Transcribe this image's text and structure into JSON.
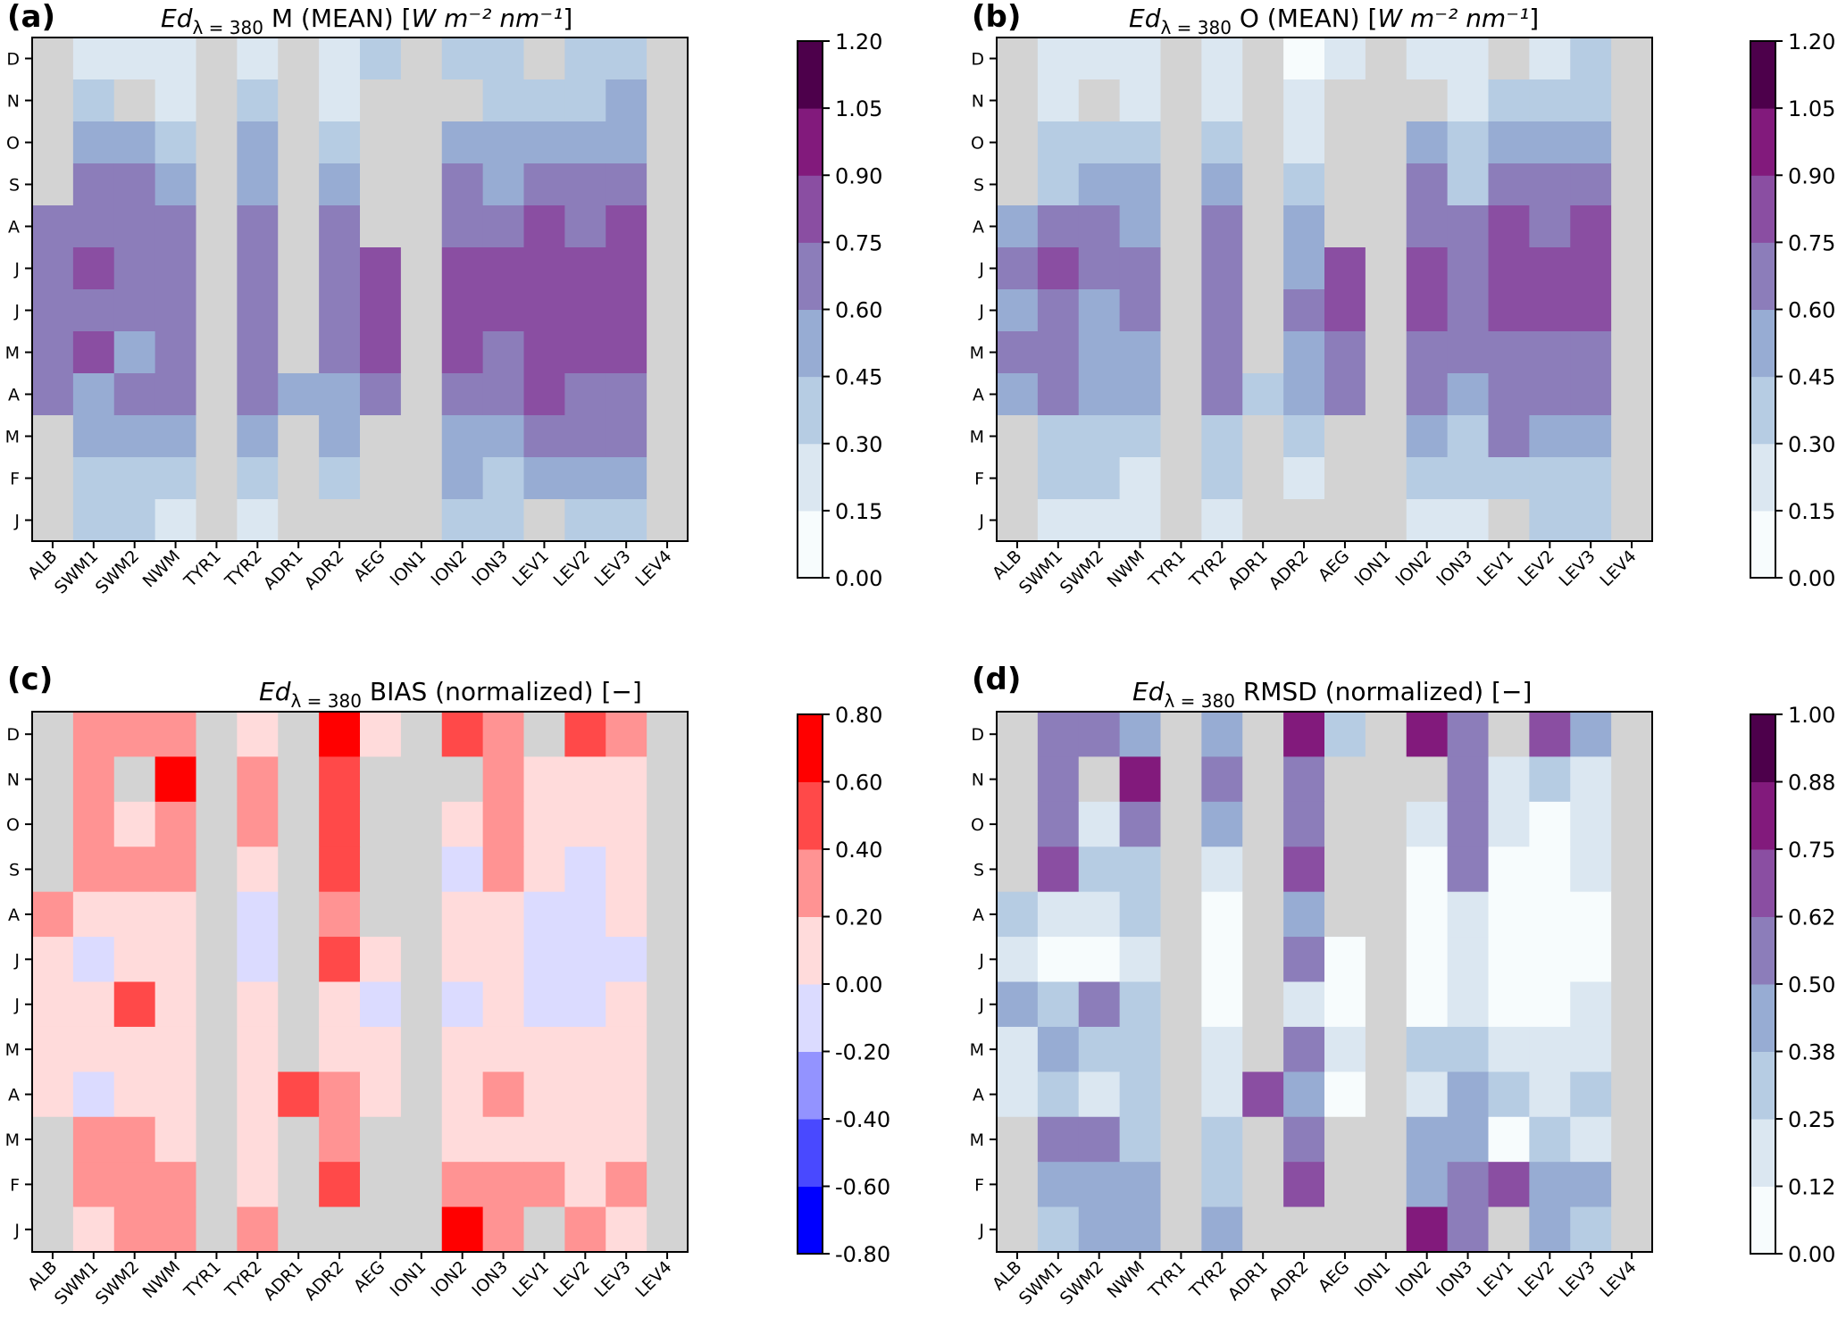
{
  "chart_data": {
    "type": "heatmap",
    "rows": [
      "D",
      "N",
      "O",
      "S",
      "A",
      "J",
      "J",
      "M",
      "A",
      "M",
      "F",
      "J"
    ],
    "columns": [
      "ALB",
      "SWM1",
      "SWM2",
      "NWM",
      "TYR1",
      "TYR2",
      "ADR1",
      "ADR2",
      "AEG",
      "ION1",
      "ION2",
      "ION3",
      "LEV1",
      "LEV2",
      "LEV3",
      "LEV4"
    ],
    "missing_color": "#d3d3d3",
    "value_encoding": "each cell = index of colorbar bin (0 = lowest bin); null = no data",
    "colorbars": {
      "mean": {
        "ticks": [
          "0.00",
          "0.15",
          "0.30",
          "0.45",
          "0.60",
          "0.75",
          "0.90",
          "1.05",
          "1.20"
        ],
        "range": [
          0.0,
          1.2
        ],
        "colors": [
          "#f7fcfd",
          "#dbe7f1",
          "#b6cce3",
          "#97acd3",
          "#8c7dba",
          "#8a4ea2",
          "#821a7c",
          "#4d004b"
        ]
      },
      "bias": {
        "ticks": [
          "-0.80",
          "-0.60",
          "-0.40",
          "-0.20",
          "0.00",
          "0.20",
          "0.40",
          "0.60",
          "0.80"
        ],
        "range": [
          -0.8,
          0.8
        ],
        "colors": [
          "#0000ff",
          "#4949ff",
          "#9393ff",
          "#dbdbff",
          "#ffdbdb",
          "#ff9393",
          "#ff4949",
          "#ff0000"
        ]
      },
      "rmsd": {
        "ticks": [
          "0.00",
          "0.12",
          "0.25",
          "0.38",
          "0.50",
          "0.62",
          "0.75",
          "0.88",
          "1.00"
        ],
        "range": [
          0.0,
          1.0
        ],
        "colors": [
          "#f7fcfd",
          "#dbe7f1",
          "#b6cce3",
          "#97acd3",
          "#8c7dba",
          "#8a4ea2",
          "#821a7c",
          "#4d004b"
        ]
      }
    },
    "panels": [
      {
        "letter": "(a)",
        "title_var": "Ed",
        "title_sub": "λ = 380",
        "title_rest": " M (MEAN) [",
        "title_unit": "W m⁻² nm⁻¹",
        "title_end": "]",
        "colorbar": "mean",
        "grid": [
          [
            null,
            1,
            1,
            1,
            null,
            1,
            null,
            1,
            2,
            null,
            2,
            2,
            null,
            2,
            2,
            null
          ],
          [
            null,
            2,
            null,
            1,
            null,
            2,
            null,
            1,
            null,
            null,
            null,
            2,
            2,
            2,
            3,
            null
          ],
          [
            null,
            3,
            3,
            2,
            null,
            3,
            null,
            2,
            null,
            null,
            3,
            3,
            3,
            3,
            3,
            null
          ],
          [
            null,
            4,
            4,
            3,
            null,
            3,
            null,
            3,
            null,
            null,
            4,
            3,
            4,
            4,
            4,
            null
          ],
          [
            4,
            4,
            4,
            4,
            null,
            4,
            null,
            4,
            null,
            null,
            4,
            4,
            5,
            4,
            5,
            null
          ],
          [
            4,
            5,
            4,
            4,
            null,
            4,
            null,
            4,
            5,
            null,
            5,
            5,
            5,
            5,
            5,
            null
          ],
          [
            4,
            4,
            4,
            4,
            null,
            4,
            null,
            4,
            5,
            null,
            5,
            5,
            5,
            5,
            5,
            null
          ],
          [
            4,
            5,
            3,
            4,
            null,
            4,
            null,
            4,
            5,
            null,
            5,
            4,
            5,
            5,
            5,
            null
          ],
          [
            4,
            3,
            4,
            4,
            null,
            4,
            3,
            3,
            4,
            null,
            4,
            4,
            5,
            4,
            4,
            null
          ],
          [
            null,
            3,
            3,
            3,
            null,
            3,
            null,
            3,
            null,
            null,
            3,
            3,
            4,
            4,
            4,
            null
          ],
          [
            null,
            2,
            2,
            2,
            null,
            2,
            null,
            2,
            null,
            null,
            3,
            2,
            3,
            3,
            3,
            null
          ],
          [
            null,
            2,
            2,
            1,
            null,
            1,
            null,
            null,
            null,
            null,
            2,
            2,
            null,
            2,
            2,
            null
          ]
        ]
      },
      {
        "letter": "(b)",
        "title_var": "Ed",
        "title_sub": "λ = 380",
        "title_rest": " O (MEAN) [",
        "title_unit": "W m⁻² nm⁻¹",
        "title_end": "]",
        "colorbar": "mean",
        "grid": [
          [
            null,
            1,
            1,
            1,
            null,
            1,
            null,
            0,
            1,
            null,
            1,
            1,
            null,
            1,
            2,
            null
          ],
          [
            null,
            1,
            null,
            1,
            null,
            1,
            null,
            1,
            null,
            null,
            null,
            1,
            2,
            2,
            2,
            null
          ],
          [
            null,
            2,
            2,
            2,
            null,
            2,
            null,
            1,
            null,
            null,
            3,
            2,
            3,
            3,
            3,
            null
          ],
          [
            null,
            2,
            3,
            3,
            null,
            3,
            null,
            2,
            null,
            null,
            4,
            2,
            4,
            4,
            4,
            null
          ],
          [
            3,
            4,
            4,
            3,
            null,
            4,
            null,
            3,
            null,
            null,
            4,
            4,
            5,
            4,
            5,
            null
          ],
          [
            4,
            5,
            4,
            4,
            null,
            4,
            null,
            3,
            5,
            null,
            5,
            4,
            5,
            5,
            5,
            null
          ],
          [
            3,
            4,
            3,
            4,
            null,
            4,
            null,
            4,
            5,
            null,
            5,
            4,
            5,
            5,
            5,
            null
          ],
          [
            4,
            4,
            3,
            3,
            null,
            4,
            null,
            3,
            4,
            null,
            4,
            4,
            4,
            4,
            4,
            null
          ],
          [
            3,
            4,
            3,
            3,
            null,
            4,
            2,
            3,
            4,
            null,
            4,
            3,
            4,
            4,
            4,
            null
          ],
          [
            null,
            2,
            2,
            2,
            null,
            2,
            null,
            2,
            null,
            null,
            3,
            2,
            4,
            3,
            3,
            null
          ],
          [
            null,
            2,
            2,
            1,
            null,
            2,
            null,
            1,
            null,
            null,
            2,
            2,
            2,
            2,
            2,
            null
          ],
          [
            null,
            1,
            1,
            1,
            null,
            1,
            null,
            null,
            null,
            null,
            1,
            1,
            null,
            2,
            2,
            null
          ]
        ]
      },
      {
        "letter": "(c)",
        "title_var": "Ed",
        "title_sub": "λ = 380",
        "title_rest": " BIAS (normalized) [",
        "title_unit": "−",
        "title_end": "]",
        "colorbar": "bias",
        "grid": [
          [
            null,
            5,
            5,
            5,
            null,
            4,
            null,
            7,
            4,
            null,
            6,
            5,
            null,
            6,
            5,
            null
          ],
          [
            null,
            5,
            null,
            7,
            null,
            5,
            null,
            6,
            null,
            null,
            null,
            5,
            4,
            4,
            4,
            null
          ],
          [
            null,
            5,
            4,
            5,
            null,
            5,
            null,
            6,
            null,
            null,
            4,
            5,
            4,
            4,
            4,
            null
          ],
          [
            null,
            5,
            5,
            5,
            null,
            4,
            null,
            6,
            null,
            null,
            3,
            5,
            4,
            3,
            4,
            null
          ],
          [
            5,
            4,
            4,
            4,
            null,
            3,
            null,
            5,
            null,
            null,
            4,
            4,
            3,
            3,
            4,
            null
          ],
          [
            4,
            3,
            4,
            4,
            null,
            3,
            null,
            6,
            4,
            null,
            4,
            4,
            3,
            3,
            3,
            null
          ],
          [
            4,
            4,
            6,
            4,
            null,
            4,
            null,
            4,
            3,
            null,
            3,
            4,
            3,
            3,
            4,
            null
          ],
          [
            4,
            4,
            4,
            4,
            null,
            4,
            null,
            4,
            4,
            null,
            4,
            4,
            4,
            4,
            4,
            null
          ],
          [
            4,
            3,
            4,
            4,
            null,
            4,
            6,
            5,
            4,
            null,
            4,
            5,
            4,
            4,
            4,
            null
          ],
          [
            null,
            5,
            5,
            4,
            null,
            4,
            null,
            5,
            null,
            null,
            4,
            4,
            4,
            4,
            4,
            null
          ],
          [
            null,
            5,
            5,
            5,
            null,
            4,
            null,
            6,
            null,
            null,
            5,
            5,
            5,
            4,
            5,
            null
          ],
          [
            null,
            4,
            5,
            5,
            null,
            5,
            null,
            null,
            null,
            null,
            7,
            5,
            null,
            5,
            4,
            null
          ]
        ]
      },
      {
        "letter": "(d)",
        "title_var": "Ed",
        "title_sub": "λ = 380",
        "title_rest": " RMSD (normalized) [",
        "title_unit": "−",
        "title_end": "]",
        "colorbar": "rmsd",
        "grid": [
          [
            null,
            4,
            4,
            3,
            null,
            3,
            null,
            6,
            2,
            null,
            6,
            4,
            null,
            5,
            3,
            null
          ],
          [
            null,
            4,
            null,
            6,
            null,
            4,
            null,
            4,
            null,
            null,
            null,
            4,
            1,
            2,
            1,
            null
          ],
          [
            null,
            4,
            1,
            4,
            null,
            3,
            null,
            4,
            null,
            null,
            1,
            4,
            1,
            0,
            1,
            null
          ],
          [
            null,
            5,
            2,
            2,
            null,
            1,
            null,
            5,
            null,
            null,
            0,
            4,
            0,
            0,
            1,
            null
          ],
          [
            2,
            1,
            1,
            2,
            null,
            0,
            null,
            3,
            null,
            null,
            0,
            1,
            0,
            0,
            0,
            null
          ],
          [
            1,
            0,
            0,
            1,
            null,
            0,
            null,
            4,
            0,
            null,
            0,
            1,
            0,
            0,
            0,
            null
          ],
          [
            3,
            2,
            4,
            2,
            null,
            0,
            null,
            1,
            0,
            null,
            0,
            1,
            0,
            0,
            1,
            null
          ],
          [
            1,
            3,
            2,
            2,
            null,
            1,
            null,
            4,
            1,
            null,
            2,
            2,
            1,
            1,
            1,
            null
          ],
          [
            1,
            2,
            1,
            2,
            null,
            1,
            5,
            3,
            0,
            null,
            1,
            3,
            2,
            1,
            2,
            null
          ],
          [
            null,
            4,
            4,
            2,
            null,
            2,
            null,
            4,
            null,
            null,
            3,
            3,
            0,
            2,
            1,
            null
          ],
          [
            null,
            3,
            3,
            3,
            null,
            2,
            null,
            5,
            null,
            null,
            3,
            4,
            5,
            3,
            3,
            null
          ],
          [
            null,
            2,
            3,
            3,
            null,
            3,
            null,
            null,
            null,
            null,
            6,
            4,
            null,
            3,
            2,
            null
          ]
        ]
      }
    ]
  }
}
